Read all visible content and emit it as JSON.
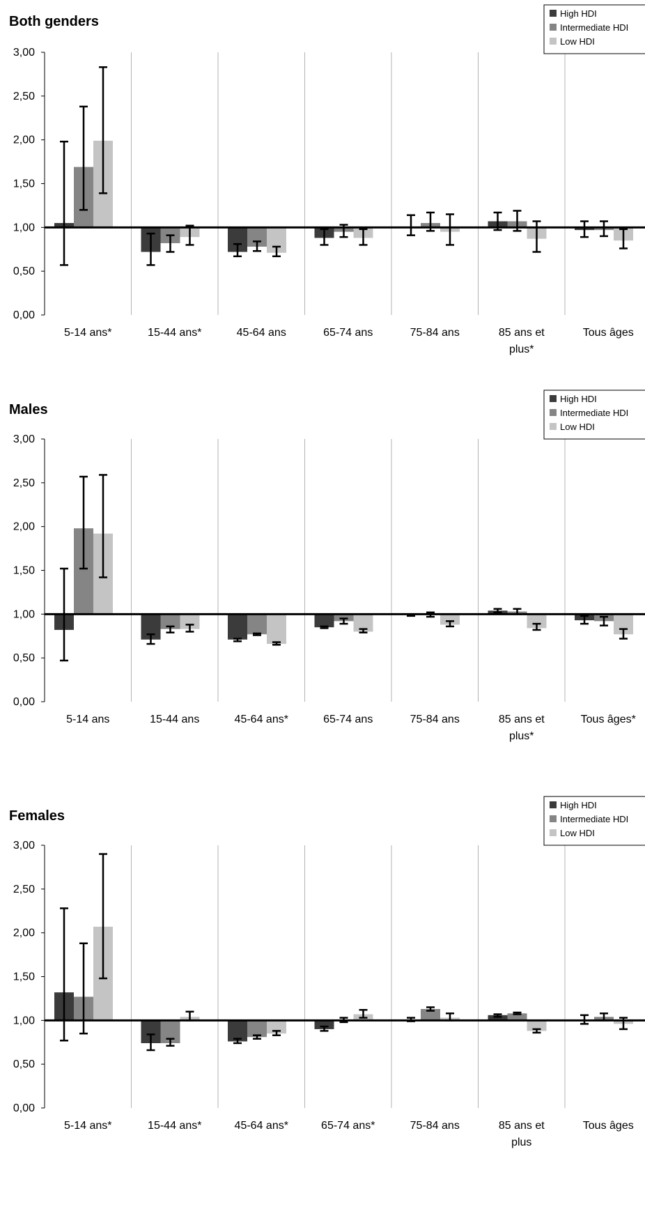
{
  "colors": {
    "high": "#3b3b3b",
    "intermediate": "#858585",
    "low": "#c4c4c4",
    "axis": "#000000",
    "gridline": "#b3b3b3"
  },
  "chart_data": [
    {
      "type": "bar",
      "title": "Both genders",
      "categories": [
        "5-14 ans*",
        "15-44 ans*",
        "45-64 ans",
        "65-74 ans",
        "75-84 ans",
        "85 ans et plus*",
        "Tous âges"
      ],
      "category_lines": [
        [
          "5-14 ans*"
        ],
        [
          "15-44 ans*"
        ],
        [
          "45-64 ans"
        ],
        [
          "65-74 ans"
        ],
        [
          "75-84 ans"
        ],
        [
          "85 ans et",
          "plus*"
        ],
        [
          "Tous âges"
        ]
      ],
      "ylim": [
        0,
        3
      ],
      "yticks": [
        "0,00",
        "0,50",
        "1,00",
        "1,50",
        "2,00",
        "2,50",
        "3,00"
      ],
      "baseline": 1.0,
      "legend_position": "top-right",
      "series": [
        {
          "name": "High HDI",
          "values": [
            1.05,
            0.72,
            0.72,
            0.88,
            1.0,
            1.07,
            0.97
          ],
          "err_low": [
            0.57,
            0.57,
            0.67,
            0.8,
            0.91,
            0.97,
            0.89
          ],
          "err_high": [
            1.98,
            0.93,
            0.81,
            0.98,
            1.14,
            1.17,
            1.07
          ]
        },
        {
          "name": "Intermediate HDI",
          "values": [
            1.69,
            0.82,
            0.78,
            0.95,
            1.05,
            1.07,
            0.97
          ],
          "err_low": [
            1.2,
            0.72,
            0.73,
            0.89,
            0.96,
            0.96,
            0.9
          ],
          "err_high": [
            2.38,
            0.91,
            0.84,
            1.03,
            1.17,
            1.19,
            1.07
          ]
        },
        {
          "name": "Low HDI",
          "values": [
            1.99,
            0.89,
            0.71,
            0.88,
            0.95,
            0.87,
            0.85
          ],
          "err_low": [
            1.39,
            0.8,
            0.67,
            0.8,
            0.8,
            0.72,
            0.76
          ],
          "err_high": [
            2.83,
            1.02,
            0.78,
            0.98,
            1.15,
            1.07,
            0.98
          ]
        }
      ]
    },
    {
      "type": "bar",
      "title": "Males",
      "categories": [
        "5-14 ans",
        "15-44 ans",
        "45-64 ans*",
        "65-74 ans",
        "75-84 ans",
        "85 ans et plus*",
        "Tous âges*"
      ],
      "category_lines": [
        [
          "5-14 ans"
        ],
        [
          "15-44 ans"
        ],
        [
          "45-64 ans*"
        ],
        [
          "65-74 ans"
        ],
        [
          "75-84 ans"
        ],
        [
          "85 ans et",
          "plus*"
        ],
        [
          "Tous âges*"
        ]
      ],
      "ylim": [
        0,
        3
      ],
      "yticks": [
        "0,00",
        "0,50",
        "1,00",
        "1,50",
        "2,00",
        "2,50",
        "3,00"
      ],
      "baseline": 1.0,
      "legend_position": "top-right",
      "series": [
        {
          "name": "High HDI",
          "values": [
            0.82,
            0.71,
            0.71,
            0.85,
            0.99,
            1.04,
            0.93
          ],
          "err_low": [
            0.47,
            0.66,
            0.69,
            0.84,
            0.98,
            1.02,
            0.89
          ],
          "err_high": [
            1.52,
            0.77,
            0.72,
            0.86,
            1.0,
            1.06,
            0.98
          ]
        },
        {
          "name": "Intermediate HDI",
          "values": [
            1.98,
            0.83,
            0.77,
            0.92,
            1.0,
            1.03,
            0.92
          ],
          "err_low": [
            1.52,
            0.79,
            0.76,
            0.89,
            0.97,
            1.0,
            0.87
          ],
          "err_high": [
            2.57,
            0.86,
            0.78,
            0.95,
            1.02,
            1.06,
            0.97
          ]
        },
        {
          "name": "Low HDI",
          "values": [
            1.92,
            0.83,
            0.66,
            0.8,
            0.88,
            0.84,
            0.77
          ],
          "err_low": [
            1.42,
            0.8,
            0.65,
            0.79,
            0.86,
            0.82,
            0.72
          ],
          "err_high": [
            2.59,
            0.88,
            0.68,
            0.83,
            0.92,
            0.89,
            0.83
          ]
        }
      ]
    },
    {
      "type": "bar",
      "title": "Females",
      "categories": [
        "5-14 ans*",
        "15-44 ans*",
        "45-64 ans*",
        "65-74 ans*",
        "75-84 ans",
        "85 ans et plus",
        "Tous âges"
      ],
      "category_lines": [
        [
          "5-14 ans*"
        ],
        [
          "15-44 ans*"
        ],
        [
          "45-64 ans*"
        ],
        [
          "65-74 ans*"
        ],
        [
          "75-84 ans"
        ],
        [
          "85 ans et",
          "plus"
        ],
        [
          "Tous âges"
        ]
      ],
      "ylim": [
        0,
        3
      ],
      "yticks": [
        "0,00",
        "0,50",
        "1,00",
        "1,50",
        "2,00",
        "2,50",
        "3,00"
      ],
      "baseline": 1.0,
      "legend_position": "top-right",
      "series": [
        {
          "name": "High HDI",
          "values": [
            1.32,
            0.74,
            0.76,
            0.9,
            1.0,
            1.06,
            1.01
          ],
          "err_low": [
            0.77,
            0.66,
            0.74,
            0.88,
            0.99,
            1.04,
            0.96
          ],
          "err_high": [
            2.28,
            0.84,
            0.79,
            0.93,
            1.03,
            1.07,
            1.06
          ]
        },
        {
          "name": "Intermediate HDI",
          "values": [
            1.27,
            0.74,
            0.81,
            1.0,
            1.13,
            1.08,
            1.04
          ],
          "err_low": [
            0.85,
            0.71,
            0.79,
            0.98,
            1.11,
            1.07,
            1.0
          ],
          "err_high": [
            1.88,
            0.79,
            0.83,
            1.03,
            1.15,
            1.09,
            1.08
          ]
        },
        {
          "name": "Low HDI",
          "values": [
            2.07,
            1.04,
            0.85,
            1.07,
            1.03,
            0.88,
            0.96
          ],
          "err_low": [
            1.48,
            1.0,
            0.83,
            1.03,
            1.0,
            0.86,
            0.9
          ],
          "err_high": [
            2.9,
            1.1,
            0.88,
            1.12,
            1.08,
            0.9,
            1.03
          ]
        }
      ]
    }
  ]
}
